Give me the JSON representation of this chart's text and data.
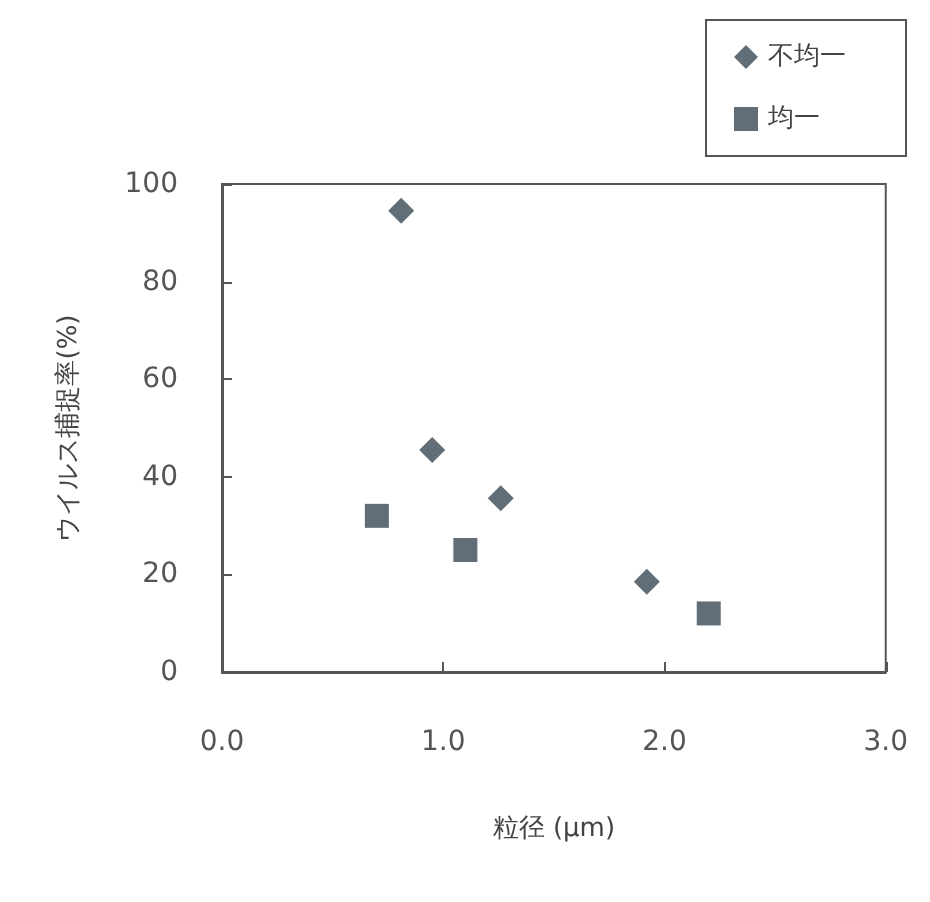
{
  "chart_data": {
    "type": "scatter",
    "xlabel": "粒径 (μm)",
    "ylabel": "ウイルス捕捉率(%)",
    "series": [
      {
        "name": "不均一",
        "color": "#3a4a55",
        "marker": "diamond",
        "x": [
          0.81,
          0.95,
          1.26,
          1.92
        ],
        "values": [
          94.5,
          45.5,
          35.6,
          18.5
        ]
      },
      {
        "name": "均一",
        "color": "#3a4a55",
        "marker": "square",
        "x": [
          0.7,
          1.1,
          2.2
        ],
        "values": [
          32,
          25,
          12
        ]
      }
    ],
    "xlim": [
      0,
      3
    ],
    "xticks": [
      {
        "value": 0,
        "label": "0.0"
      },
      {
        "value": 1,
        "label": "1.0"
      },
      {
        "value": 2,
        "label": "2.0"
      },
      {
        "value": 3,
        "label": "3.0"
      }
    ],
    "ylim": [
      0,
      100
    ],
    "yticks": [
      0,
      20,
      40,
      60,
      80,
      100
    ],
    "grid": false,
    "legend": "top right"
  }
}
